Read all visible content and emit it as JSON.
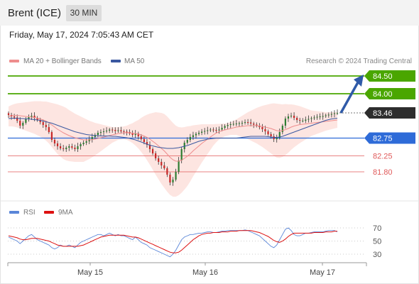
{
  "header": {
    "instrument": "Brent (ICE)",
    "interval": "30 MIN",
    "datetime": "Friday, May 17, 2024 7:05:43 AM CET"
  },
  "legend": {
    "ma20": "MA 20 + Bollinger Bands",
    "ma50": "MA 50",
    "credit": "Research © 2024 Trading Central"
  },
  "indicator_legend": {
    "rsi": "RSI",
    "ma9": "9MA"
  },
  "colors": {
    "ma20": "#ee8d8d",
    "ma50": "#3a58a0",
    "bands": "#fde0dc",
    "resistance": "#4aa600",
    "pivot": "#2e6bd8",
    "support": "#e05a5a",
    "current": "#2d2d2d",
    "arrow": "#2f5aa8",
    "rsi": "#5a86d8",
    "rsi_ma": "#dd1111",
    "bull": "#2e7d32",
    "bear": "#c62828"
  },
  "chart_data": [
    {
      "type": "candlestick",
      "title": "Brent (ICE)",
      "x_ticks": [
        "May 15",
        "May 16",
        "May 17"
      ],
      "ylim": [
        81.2,
        84.7
      ],
      "levels": [
        {
          "label": "84.50",
          "value": 84.5,
          "kind": "resistance"
        },
        {
          "label": "84.00",
          "value": 84.0,
          "kind": "resistance"
        },
        {
          "label": "83.46",
          "value": 83.46,
          "kind": "last"
        },
        {
          "label": "82.75",
          "value": 82.75,
          "kind": "pivot"
        },
        {
          "label": "82.25",
          "value": 82.25,
          "kind": "support"
        },
        {
          "label": "81.80",
          "value": 81.8,
          "kind": "support"
        }
      ],
      "close": [
        83.4,
        83.36,
        83.33,
        83.24,
        83.1,
        83.18,
        83.28,
        83.34,
        83.38,
        83.32,
        83.26,
        83.2,
        83.12,
        83.06,
        82.92,
        82.7,
        82.6,
        82.52,
        82.46,
        82.44,
        82.48,
        82.52,
        82.48,
        82.44,
        82.52,
        82.58,
        82.62,
        82.66,
        82.72,
        82.78,
        82.84,
        82.9,
        82.92,
        82.94,
        82.96,
        82.99,
        82.98,
        82.95,
        82.97,
        82.94,
        82.93,
        82.92,
        82.88,
        82.84,
        82.88,
        82.8,
        82.72,
        82.64,
        82.56,
        82.44,
        82.32,
        82.18,
        82.08,
        81.98,
        81.9,
        81.72,
        81.5,
        81.58,
        81.8,
        82.12,
        82.44,
        82.62,
        82.7,
        82.78,
        82.83,
        82.87,
        82.9,
        82.93,
        82.95,
        82.97,
        82.99,
        82.98,
        82.97,
        82.99,
        83.04,
        83.09,
        83.12,
        83.14,
        83.15,
        83.16,
        83.17,
        83.18,
        83.2,
        83.19,
        83.16,
        83.13,
        83.1,
        83.06,
        83.0,
        82.94,
        82.86,
        82.8,
        82.72,
        82.76,
        82.92,
        83.1,
        83.3,
        83.36,
        83.38,
        83.32,
        83.26,
        83.24,
        83.24,
        83.27,
        83.29,
        83.31,
        83.33,
        83.35,
        83.36,
        83.37,
        83.39,
        83.41,
        83.43,
        83.45,
        83.46
      ],
      "ma20": [
        83.36,
        83.38,
        83.39,
        83.39,
        83.38,
        83.37,
        83.36,
        83.35,
        83.34,
        83.33,
        83.31,
        83.29,
        83.26,
        83.23,
        83.18,
        83.12,
        83.06,
        83.0,
        82.95,
        82.9,
        82.86,
        82.82,
        82.79,
        82.76,
        82.74,
        82.72,
        82.7,
        82.7,
        82.7,
        82.71,
        82.72,
        82.74,
        82.76,
        82.78,
        82.8,
        82.82,
        82.84,
        82.86,
        82.88,
        82.89,
        82.9,
        82.9,
        82.9,
        82.89,
        82.88,
        82.86,
        82.84,
        82.81,
        82.77,
        82.72,
        82.66,
        82.6,
        82.53,
        82.46,
        82.39,
        82.3,
        82.21,
        82.14,
        82.1,
        82.1,
        82.13,
        82.18,
        82.24,
        82.31,
        82.39,
        82.46,
        82.53,
        82.6,
        82.66,
        82.72,
        82.78,
        82.84,
        82.89,
        82.93,
        82.96,
        82.98,
        83.0,
        83.02,
        83.04,
        83.06,
        83.07,
        83.08,
        83.09,
        83.1,
        83.1,
        83.1,
        83.1,
        83.09,
        83.08,
        83.06,
        83.04,
        83.02,
        82.99,
        82.96,
        82.95,
        82.96,
        82.99,
        83.02,
        83.06,
        83.09,
        83.11,
        83.13,
        83.14,
        83.15,
        83.16,
        83.17,
        83.18,
        83.19,
        83.2,
        83.21,
        83.22,
        83.23,
        83.24,
        83.25,
        83.26
      ],
      "ma50": [
        83.3,
        83.31,
        83.31,
        83.31,
        83.3,
        83.3,
        83.29,
        83.29,
        83.28,
        83.27,
        83.26,
        83.25,
        83.23,
        83.21,
        83.19,
        83.17,
        83.14,
        83.11,
        83.08,
        83.05,
        83.02,
        82.99,
        82.96,
        82.93,
        82.91,
        82.89,
        82.87,
        82.85,
        82.84,
        82.83,
        82.82,
        82.82,
        82.81,
        82.81,
        82.81,
        82.81,
        82.8,
        82.8,
        82.79,
        82.78,
        82.77,
        82.76,
        82.74,
        82.72,
        82.7,
        82.67,
        82.64,
        82.61,
        82.58,
        82.55,
        82.53,
        82.51,
        82.49,
        82.48,
        82.47,
        82.46,
        82.46,
        82.46,
        82.47,
        82.48,
        82.5,
        82.52,
        82.54,
        82.57,
        82.6,
        82.63,
        82.66,
        82.68,
        82.7,
        82.72,
        82.73,
        82.74,
        82.75,
        82.75,
        82.75,
        82.75,
        82.75,
        82.75,
        82.75,
        82.75,
        82.76,
        82.77,
        82.78,
        82.79,
        82.8,
        82.8,
        82.8,
        82.8,
        82.8,
        82.8,
        82.79,
        82.78,
        82.77,
        82.77,
        82.78,
        82.8,
        82.83,
        82.86,
        82.89,
        82.92,
        82.95,
        82.98,
        83.01,
        83.04,
        83.07,
        83.1,
        83.13,
        83.16,
        83.19,
        83.22,
        83.25,
        83.27,
        83.29,
        83.3,
        83.31
      ],
      "bb_width": [
        0.28,
        0.3,
        0.32,
        0.34,
        0.36,
        0.38,
        0.4,
        0.42,
        0.44,
        0.46,
        0.48,
        0.5,
        0.52,
        0.55,
        0.58,
        0.62,
        0.66,
        0.7,
        0.72,
        0.74,
        0.74,
        0.72,
        0.7,
        0.68,
        0.66,
        0.64,
        0.62,
        0.58,
        0.54,
        0.5,
        0.46,
        0.42,
        0.38,
        0.34,
        0.3,
        0.26,
        0.22,
        0.2,
        0.18,
        0.18,
        0.18,
        0.2,
        0.24,
        0.28,
        0.34,
        0.4,
        0.48,
        0.56,
        0.64,
        0.72,
        0.8,
        0.88,
        0.94,
        1.0,
        1.04,
        1.06,
        1.06,
        1.04,
        1.0,
        0.96,
        0.92,
        0.88,
        0.84,
        0.78,
        0.72,
        0.66,
        0.6,
        0.54,
        0.48,
        0.42,
        0.36,
        0.3,
        0.26,
        0.22,
        0.2,
        0.18,
        0.18,
        0.18,
        0.2,
        0.22,
        0.26,
        0.3,
        0.34,
        0.38,
        0.42,
        0.46,
        0.5,
        0.54,
        0.58,
        0.62,
        0.66,
        0.7,
        0.74,
        0.76,
        0.76,
        0.74,
        0.72,
        0.68,
        0.64,
        0.6,
        0.56,
        0.52,
        0.48,
        0.44,
        0.4,
        0.36,
        0.34,
        0.32,
        0.3,
        0.28,
        0.26,
        0.25,
        0.24,
        0.23,
        0.22
      ]
    },
    {
      "type": "line",
      "title": "RSI",
      "ylim": [
        20,
        80
      ],
      "y_ticks": [
        70,
        50,
        30
      ],
      "series": [
        {
          "name": "RSI",
          "values": [
            56,
            54,
            52,
            50,
            46,
            50,
            54,
            58,
            60,
            56,
            52,
            50,
            48,
            46,
            44,
            40,
            38,
            40,
            44,
            42,
            42,
            44,
            42,
            40,
            44,
            48,
            50,
            52,
            54,
            56,
            58,
            60,
            60,
            58,
            60,
            62,
            60,
            58,
            60,
            58,
            58,
            56,
            54,
            52,
            56,
            52,
            48,
            46,
            44,
            40,
            38,
            36,
            34,
            32,
            30,
            28,
            26,
            30,
            36,
            44,
            52,
            56,
            58,
            60,
            60,
            61,
            62,
            62,
            63,
            64,
            64,
            63,
            63,
            64,
            65,
            65,
            66,
            66,
            66,
            66,
            66,
            66,
            67,
            66,
            64,
            62,
            60,
            58,
            54,
            50,
            46,
            42,
            40,
            44,
            52,
            60,
            68,
            70,
            66,
            60,
            58,
            58,
            60,
            62,
            62,
            63,
            64,
            64,
            64,
            64,
            65,
            66,
            66,
            66,
            64
          ]
        },
        {
          "name": "9MA",
          "values": [
            58,
            57,
            56,
            55,
            53,
            52,
            52,
            53,
            54,
            54,
            54,
            53,
            52,
            51,
            50,
            48,
            46,
            44,
            43,
            42,
            42,
            42,
            42,
            42,
            42,
            43,
            44,
            46,
            48,
            50,
            52,
            54,
            56,
            57,
            58,
            59,
            59,
            59,
            59,
            59,
            59,
            58,
            57,
            56,
            56,
            55,
            53,
            51,
            49,
            47,
            45,
            43,
            41,
            39,
            37,
            35,
            33,
            32,
            32,
            33,
            36,
            40,
            44,
            48,
            52,
            55,
            58,
            60,
            61,
            62,
            62,
            63,
            63,
            63,
            64,
            64,
            64,
            65,
            65,
            65,
            66,
            66,
            66,
            66,
            66,
            65,
            64,
            63,
            61,
            59,
            57,
            54,
            51,
            49,
            48,
            50,
            53,
            57,
            60,
            62,
            62,
            62,
            62,
            62,
            62,
            62,
            63,
            63,
            63,
            63,
            64,
            64,
            64,
            65,
            65
          ]
        }
      ]
    }
  ]
}
